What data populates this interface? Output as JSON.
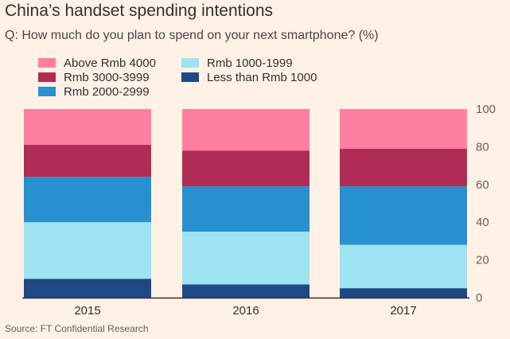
{
  "header": {
    "title": "China’s handset spending intentions",
    "subtitle": "Q: How much do you plan to spend on your next smartphone? (%)"
  },
  "footer": {
    "source": "Source: FT Confidential Research"
  },
  "colors": {
    "background": "#FFF1E5",
    "above_4000": "#FF7FA0",
    "r3000_3999": "#B02C57",
    "r2000_2999": "#2790D0",
    "r1000_1999": "#9EE3F2",
    "below_1000": "#1D4A85",
    "axis_line": "#33302E"
  },
  "chart_data": {
    "type": "bar",
    "stacked": true,
    "title": "China’s handset spending intentions",
    "subtitle": "Q: How much do you plan to spend on your next smartphone? (%)",
    "xlabel": "",
    "ylabel": "%",
    "ylim": [
      0,
      100
    ],
    "yticks": [
      "0",
      "20",
      "40",
      "60",
      "80",
      "100"
    ],
    "y_axis_side": "right",
    "grid": false,
    "legend_position": "top-left",
    "categories": [
      "2015",
      "2016",
      "2017"
    ],
    "series": [
      {
        "name": "Less than Rmb 1000",
        "color_key": "below_1000",
        "values": [
          10,
          7,
          5
        ]
      },
      {
        "name": "Rmb 1000-1999",
        "color_key": "r1000_1999",
        "values": [
          30,
          28,
          23
        ]
      },
      {
        "name": "Rmb 2000-2999",
        "color_key": "r2000_2999",
        "values": [
          24,
          24,
          31
        ]
      },
      {
        "name": "Rmb 3000-3999",
        "color_key": "r3000_3999",
        "values": [
          17,
          19,
          20
        ]
      },
      {
        "name": "Above Rmb 4000",
        "color_key": "above_4000",
        "values": [
          19,
          22,
          21
        ]
      }
    ],
    "legend": [
      {
        "label": "Above Rmb 4000",
        "color_key": "above_4000"
      },
      {
        "label": "Rmb 3000-3999",
        "color_key": "r3000_3999"
      },
      {
        "label": "Rmb 2000-2999",
        "color_key": "r2000_2999"
      },
      {
        "label": "Rmb 1000-1999",
        "color_key": "r1000_1999"
      },
      {
        "label": "Less than Rmb 1000",
        "color_key": "below_1000"
      }
    ]
  }
}
